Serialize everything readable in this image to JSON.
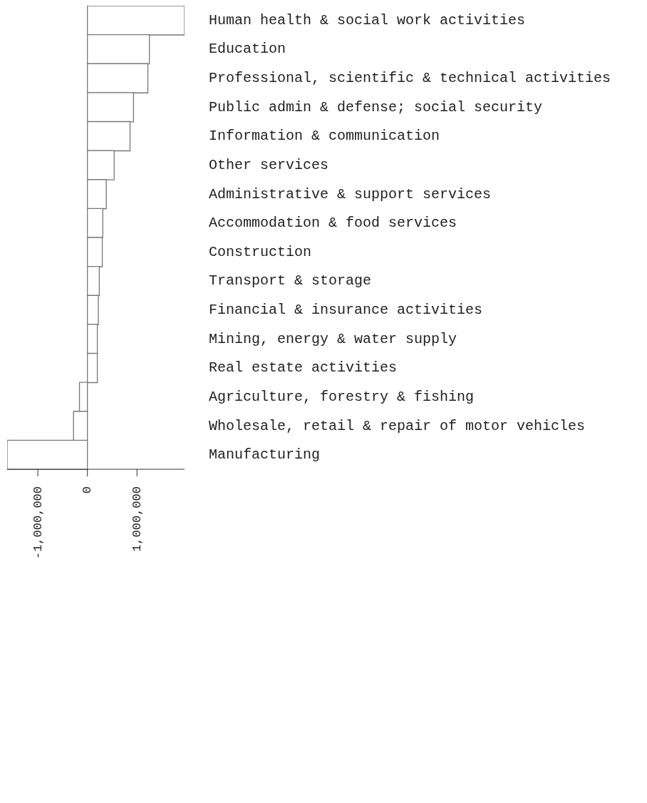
{
  "chart_data": {
    "type": "bar",
    "orientation": "horizontal",
    "categories": [
      "Human health & social work activities",
      "Education",
      "Professional, scientific & technical activities",
      "Public admin & defense; social security",
      "Information & communication",
      "Other services",
      "Administrative & support services",
      "Accommodation & food services",
      "Construction",
      "Transport & storage",
      "Financial & insurance activities",
      "Mining, energy & water supply",
      "Real estate activities",
      "Agriculture, forestry & fishing",
      "Wholesale, retail & repair of motor vehicles",
      "Manufacturing"
    ],
    "values": [
      1960000,
      1250000,
      1220000,
      930000,
      860000,
      540000,
      380000,
      310000,
      300000,
      240000,
      220000,
      200000,
      200000,
      -160000,
      -280000,
      -1620000
    ],
    "color": "#ffffff",
    "xlim": [
      -1620000,
      1960000
    ],
    "xticks": [
      {
        "value": -1000000,
        "label": "-1,000,000"
      },
      0,
      {
        "value": 1000000,
        "label": "1,000,000"
      }
    ]
  }
}
